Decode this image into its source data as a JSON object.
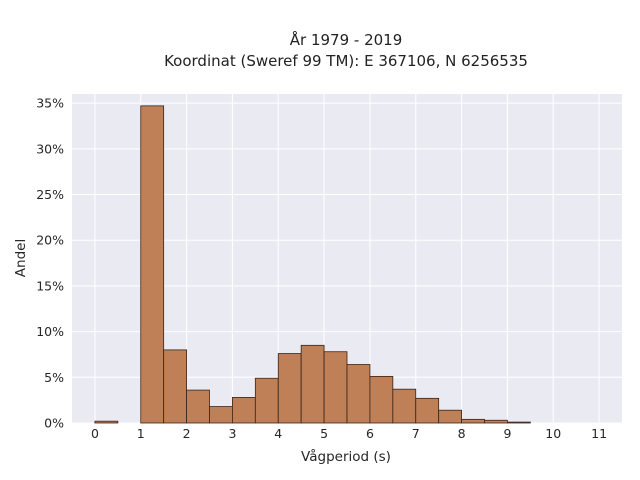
{
  "chart_data": {
    "type": "bar",
    "title_line1": "År 1979 - 2019",
    "title_line2": "Koordinat (Sweref 99 TM): E 367106, N 6256535",
    "xlabel": "Vågperiod (s)",
    "ylabel": "Andel",
    "xlim": [
      -0.5,
      11.5
    ],
    "ylim": [
      0,
      0.36
    ],
    "x_ticks": [
      0,
      1,
      2,
      3,
      4,
      5,
      6,
      7,
      8,
      9,
      10,
      11
    ],
    "y_ticks": [
      0,
      0.05,
      0.1,
      0.15,
      0.2,
      0.25,
      0.3,
      0.35
    ],
    "y_tick_labels": [
      "0%",
      "5%",
      "10%",
      "15%",
      "20%",
      "25%",
      "30%",
      "35%"
    ],
    "bin_width": 0.5,
    "bins": [
      {
        "start": 0.0,
        "value": 0.002
      },
      {
        "start": 0.5,
        "value": 0.0
      },
      {
        "start": 1.0,
        "value": 0.347
      },
      {
        "start": 1.5,
        "value": 0.08
      },
      {
        "start": 2.0,
        "value": 0.036
      },
      {
        "start": 2.5,
        "value": 0.018
      },
      {
        "start": 3.0,
        "value": 0.028
      },
      {
        "start": 3.5,
        "value": 0.049
      },
      {
        "start": 4.0,
        "value": 0.076
      },
      {
        "start": 4.5,
        "value": 0.085
      },
      {
        "start": 5.0,
        "value": 0.078
      },
      {
        "start": 5.5,
        "value": 0.064
      },
      {
        "start": 6.0,
        "value": 0.051
      },
      {
        "start": 6.5,
        "value": 0.037
      },
      {
        "start": 7.0,
        "value": 0.027
      },
      {
        "start": 7.5,
        "value": 0.014
      },
      {
        "start": 8.0,
        "value": 0.004
      },
      {
        "start": 8.5,
        "value": 0.003
      },
      {
        "start": 9.0,
        "value": 0.001
      }
    ],
    "grid": true,
    "colors": {
      "bar_fill": "#bf7f57",
      "bar_edge": "#3a2418",
      "plot_background": "#eaeaf2",
      "grid": "#ffffff"
    }
  }
}
